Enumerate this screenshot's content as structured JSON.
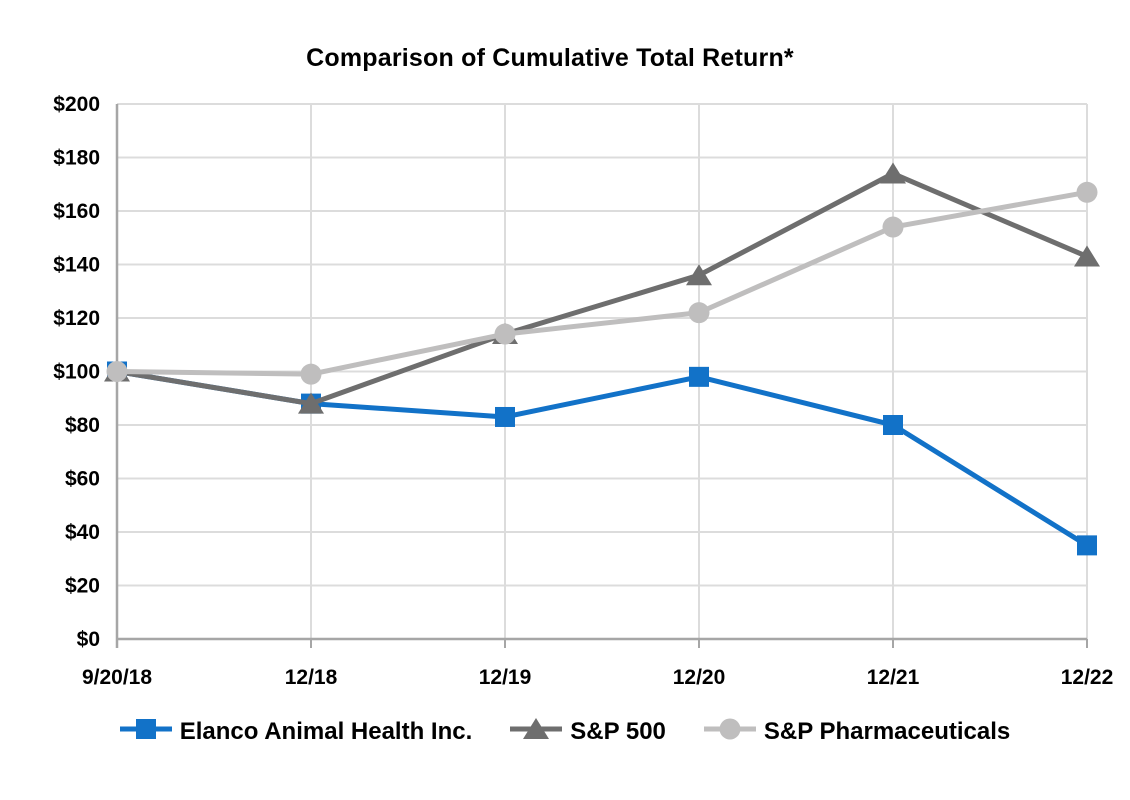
{
  "chart_data": {
    "type": "line",
    "title": "Comparison of Cumulative Total Return*",
    "categories": [
      "9/20/18",
      "12/18",
      "12/19",
      "12/20",
      "12/21",
      "12/22"
    ],
    "series": [
      {
        "name": "Elanco Animal Health Inc.",
        "marker": "square",
        "color": "#1272C8",
        "values": [
          100,
          88,
          83,
          98,
          80,
          35
        ]
      },
      {
        "name": "S&P 500",
        "marker": "triangle",
        "color": "#6E6E6E",
        "values": [
          100,
          88,
          114,
          136,
          174,
          143
        ]
      },
      {
        "name": "S&P Pharmaceuticals",
        "marker": "circle",
        "color": "#BFBEBE",
        "values": [
          100,
          99,
          114,
          122,
          154,
          167
        ]
      }
    ],
    "ylim": [
      0,
      200
    ],
    "y_tick_step": 20,
    "y_tick_labels": [
      "$0",
      "$20",
      "$40",
      "$60",
      "$80",
      "$100",
      "$120",
      "$140",
      "$160",
      "$180",
      "$200"
    ],
    "xlabel": "",
    "ylabel": "",
    "grid": true,
    "legend_position": "bottom"
  },
  "colors": {
    "background": "#FFFFFF",
    "gridline": "#DCDCDC",
    "axis_line": "#A6A6A6",
    "text": "#000000"
  }
}
